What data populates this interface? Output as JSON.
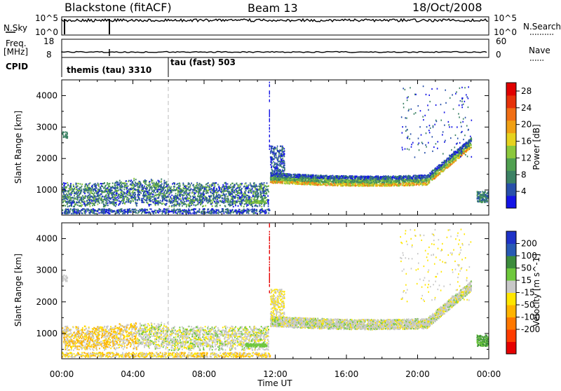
{
  "header": {
    "station": "Blackstone (fitACF)",
    "beam": "Beam 13",
    "date": "18/Oct/2008"
  },
  "top_panels": {
    "nsky_label": "N.Sky",
    "nsky_ticks": [
      "10^5",
      "10^0"
    ],
    "nsearch_label": "N.Search",
    "nsearch_ticks": [
      "10^5",
      "10^0"
    ],
    "freq_label": "Freq.",
    "freq_unit": "[MHz]",
    "freq_ticks": [
      "18",
      "8"
    ],
    "nave_label": "Nave",
    "nave_ticks": [
      "60",
      "0"
    ],
    "cpid_label": "CPID",
    "cpid_entries": [
      {
        "label": "themis (tau) 3310",
        "start": "00:00"
      },
      {
        "label": "tau (fast) 503",
        "start": "06:00"
      }
    ]
  },
  "colors": {
    "power": [
      "#1414e6",
      "#2850aa",
      "#3c8264",
      "#50a050",
      "#8cc83c",
      "#e6d21e",
      "#f0a014",
      "#f06e14",
      "#e6320a",
      "#e00000"
    ],
    "velocity": [
      "#1e32c8",
      "#285ab4",
      "#3c8c3c",
      "#6ec83c",
      "#c8c8c8",
      "#ffe600",
      "#ffb400",
      "#ff7800",
      "#ff3c00",
      "#e60000"
    ]
  },
  "chart_data": [
    {
      "type": "heatmap",
      "title": "",
      "xlabel": "",
      "ylabel": "Slant Range [km]",
      "xlim": [
        "00:00",
        "00:00"
      ],
      "ylim": [
        200,
        4500
      ],
      "x_ticks": [
        "00:00",
        "04:00",
        "08:00",
        "12:00",
        "16:00",
        "20:00",
        "00:00"
      ],
      "y_ticks": [
        "1000",
        "2000",
        "3000",
        "4000"
      ],
      "colorbar_label": "Power [dB]",
      "colorbar_ticks": [
        "4",
        "8",
        "12",
        "16",
        "20",
        "24",
        "28"
      ],
      "colorbar_range": [
        0,
        30
      ]
    },
    {
      "type": "heatmap",
      "title": "",
      "xlabel": "Time UT",
      "ylabel": "Slant Range [km]",
      "xlim": [
        "00:00",
        "00:00"
      ],
      "ylim": [
        200,
        4500
      ],
      "x_ticks": [
        "00:00",
        "04:00",
        "08:00",
        "12:00",
        "16:00",
        "20:00",
        "00:00"
      ],
      "y_ticks": [
        "1000",
        "2000",
        "3000",
        "4000"
      ],
      "colorbar_label": "Velocity [m s^-1]",
      "colorbar_ticks": [
        "200",
        "100",
        "50",
        "15",
        "-15",
        "-50",
        "-100",
        "-200"
      ],
      "colorbar_range": [
        -250,
        250
      ]
    }
  ]
}
